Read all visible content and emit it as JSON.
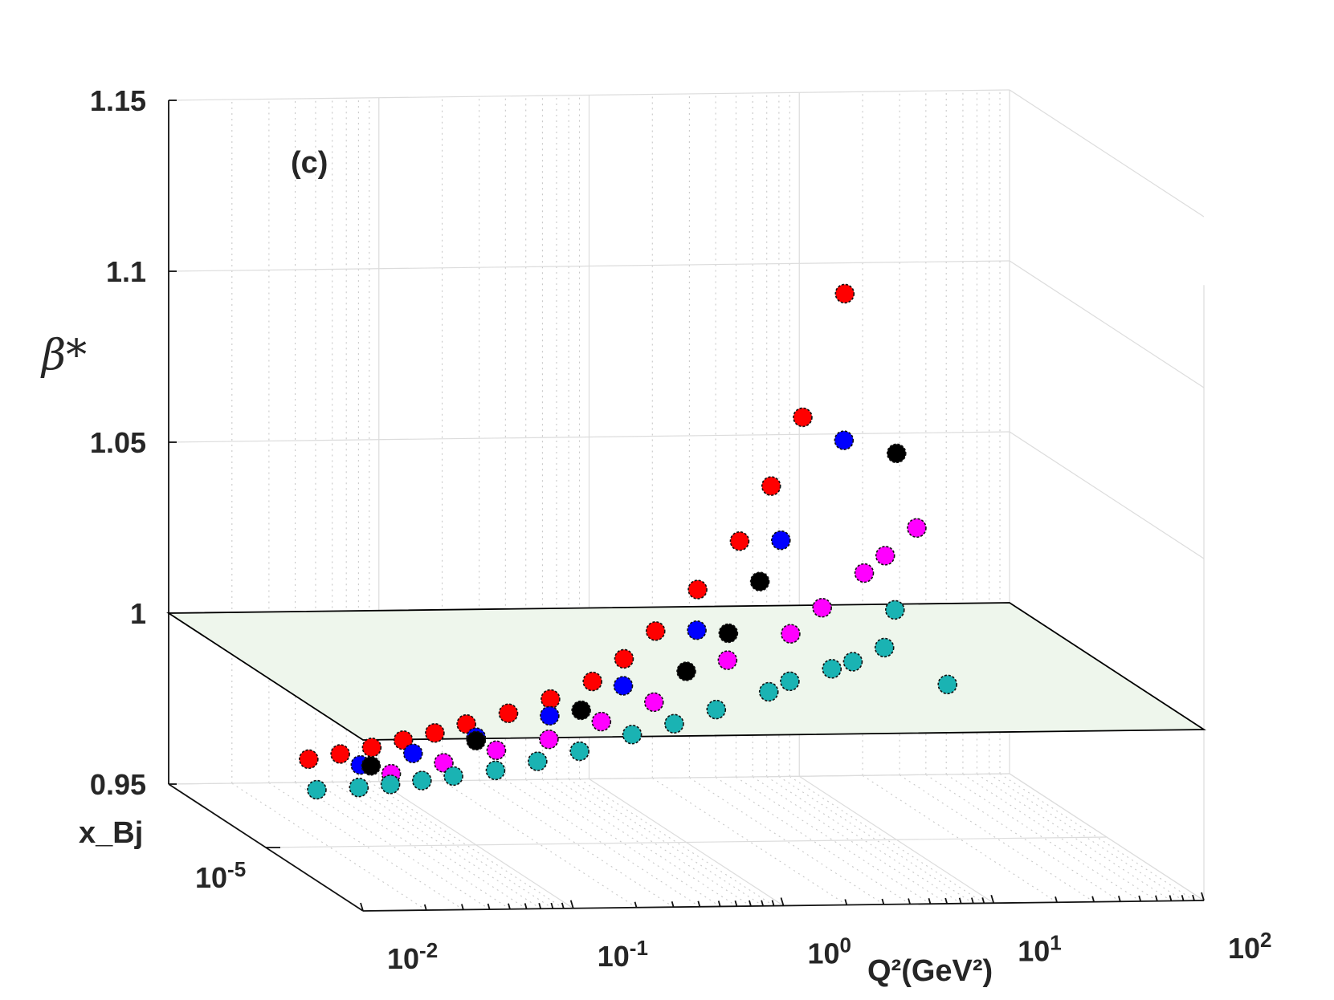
{
  "chart_data": {
    "type": "scatter3d",
    "panel_label": "(c)",
    "zlabel": "β*",
    "xlabel": "Q²(GeV²)",
    "ylabel": "x_Bj",
    "xscale": "log",
    "xlim_log10": [
      -2,
      2
    ],
    "zlim": [
      0.95,
      1.15
    ],
    "reference_plane_z": 1,
    "z_ticks": [
      {
        "value": 0.95,
        "label": "0.95"
      },
      {
        "value": 1.0,
        "label": "1"
      },
      {
        "value": 1.05,
        "label": "1.05"
      },
      {
        "value": 1.1,
        "label": "1.1"
      },
      {
        "value": 1.15,
        "label": "1.15"
      }
    ],
    "x_ticks": [
      {
        "exp": -2,
        "base": "10",
        "sup": "-2"
      },
      {
        "exp": -1,
        "base": "10",
        "sup": "-1"
      },
      {
        "exp": 0,
        "base": "10",
        "sup": "0"
      },
      {
        "exp": 1,
        "base": "10",
        "sup": "1"
      },
      {
        "exp": 2,
        "base": "10",
        "sup": "2"
      }
    ],
    "y_ticks": [
      {
        "value": 0.5,
        "base": "10",
        "sup": "-5"
      }
    ],
    "series": [
      {
        "name": "red",
        "color": "#ff0000",
        "points": [
          [
            -1.75,
            0.45,
            0.9738
          ],
          [
            -1.6,
            0.45,
            0.9752
          ],
          [
            -1.45,
            0.45,
            0.977
          ],
          [
            -1.3,
            0.45,
            0.979
          ],
          [
            -1.15,
            0.45,
            0.981
          ],
          [
            -1.0,
            0.45,
            0.9835
          ],
          [
            -0.8,
            0.45,
            0.9865
          ],
          [
            -0.6,
            0.45,
            0.9905
          ],
          [
            -0.4,
            0.45,
            0.9955
          ],
          [
            -0.25,
            0.45,
            1.002
          ],
          [
            -0.1,
            0.45,
            1.01
          ],
          [
            0.1,
            0.45,
            1.022
          ],
          [
            0.3,
            0.45,
            1.036
          ],
          [
            0.45,
            0.45,
            1.052
          ],
          [
            0.6,
            0.45,
            1.072
          ],
          [
            0.8,
            0.45,
            1.108
          ]
        ]
      },
      {
        "name": "blue",
        "color": "#0000ff",
        "points": [
          [
            -1.55,
            0.5,
            0.9738
          ],
          [
            -1.3,
            0.5,
            0.977
          ],
          [
            -1.0,
            0.5,
            0.9815
          ],
          [
            -0.65,
            0.5,
            0.9875
          ],
          [
            -0.3,
            0.5,
            0.996
          ],
          [
            0.05,
            0.5,
            1.012
          ],
          [
            0.45,
            0.5,
            1.038
          ],
          [
            0.75,
            0.5,
            1.067
          ]
        ]
      },
      {
        "name": "black",
        "color": "#000000",
        "points": [
          [
            -1.5,
            0.5,
            0.9735
          ],
          [
            -1.0,
            0.5,
            0.9805
          ],
          [
            -0.5,
            0.5,
            0.989
          ],
          [
            0.0,
            0.5,
            1.0
          ],
          [
            0.2,
            0.5,
            1.011
          ],
          [
            0.35,
            0.5,
            1.026
          ],
          [
            1.0,
            0.5,
            1.063
          ]
        ]
      },
      {
        "name": "magenta",
        "color": "#ff00ff",
        "points": [
          [
            -1.45,
            0.55,
            0.973
          ],
          [
            -1.2,
            0.55,
            0.976
          ],
          [
            -0.95,
            0.55,
            0.9795
          ],
          [
            -0.7,
            0.55,
            0.9825
          ],
          [
            -0.45,
            0.55,
            0.9875
          ],
          [
            -0.2,
            0.55,
            0.993
          ],
          [
            0.15,
            0.55,
            1.005
          ],
          [
            0.45,
            0.55,
            1.0125
          ],
          [
            0.6,
            0.55,
            1.02
          ],
          [
            0.8,
            0.55,
            1.03
          ],
          [
            0.9,
            0.55,
            1.035
          ],
          [
            1.05,
            0.55,
            1.043
          ]
        ]
      },
      {
        "name": "cyan",
        "color": "#1ab3b3",
        "points": [
          [
            -1.85,
            0.6,
            0.9705
          ],
          [
            -1.65,
            0.6,
            0.971
          ],
          [
            -1.5,
            0.6,
            0.9718
          ],
          [
            -1.35,
            0.6,
            0.9728
          ],
          [
            -1.2,
            0.6,
            0.974
          ],
          [
            -1.0,
            0.6,
            0.9755
          ],
          [
            -0.8,
            0.6,
            0.978
          ],
          [
            -0.6,
            0.6,
            0.9808
          ],
          [
            -0.35,
            0.6,
            0.9855
          ],
          [
            -0.15,
            0.6,
            0.9885
          ],
          [
            0.05,
            0.6,
            0.9925
          ],
          [
            0.3,
            0.6,
            0.9975
          ],
          [
            0.4,
            0.6,
            1.0005
          ],
          [
            0.6,
            0.6,
            1.004
          ],
          [
            0.7,
            0.6,
            1.006
          ],
          [
            0.85,
            0.6,
            1.01
          ],
          [
            0.9,
            0.6,
            1.021
          ],
          [
            1.15,
            0.6,
            0.999
          ]
        ]
      }
    ]
  }
}
